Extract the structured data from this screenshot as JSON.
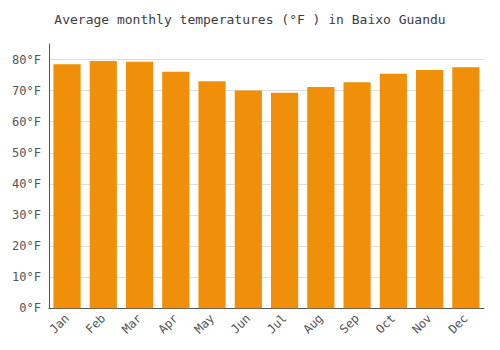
{
  "chart_data": {
    "type": "bar",
    "title": "Average monthly temperatures (°F ) in Baixo Guandu",
    "categories": [
      "Jan",
      "Feb",
      "Mar",
      "Apr",
      "May",
      "Jun",
      "Jul",
      "Aug",
      "Sep",
      "Oct",
      "Nov",
      "Dec"
    ],
    "values": [
      78.5,
      79.5,
      79.3,
      76.1,
      73.0,
      70.0,
      69.3,
      71.2,
      72.7,
      75.4,
      76.6,
      77.5
    ],
    "color": "#F0900A",
    "ylim": [
      0,
      85
    ],
    "yticks": [
      {
        "value": 0,
        "label": "0°F"
      },
      {
        "value": 10,
        "label": "10°F"
      },
      {
        "value": 20,
        "label": "20°F"
      },
      {
        "value": 30,
        "label": "30°F"
      },
      {
        "value": 40,
        "label": "40°F"
      },
      {
        "value": 50,
        "label": "50°F"
      },
      {
        "value": 60,
        "label": "60°F"
      },
      {
        "value": 70,
        "label": "70°F"
      },
      {
        "value": 80,
        "label": "80°F"
      }
    ],
    "grid": true
  }
}
